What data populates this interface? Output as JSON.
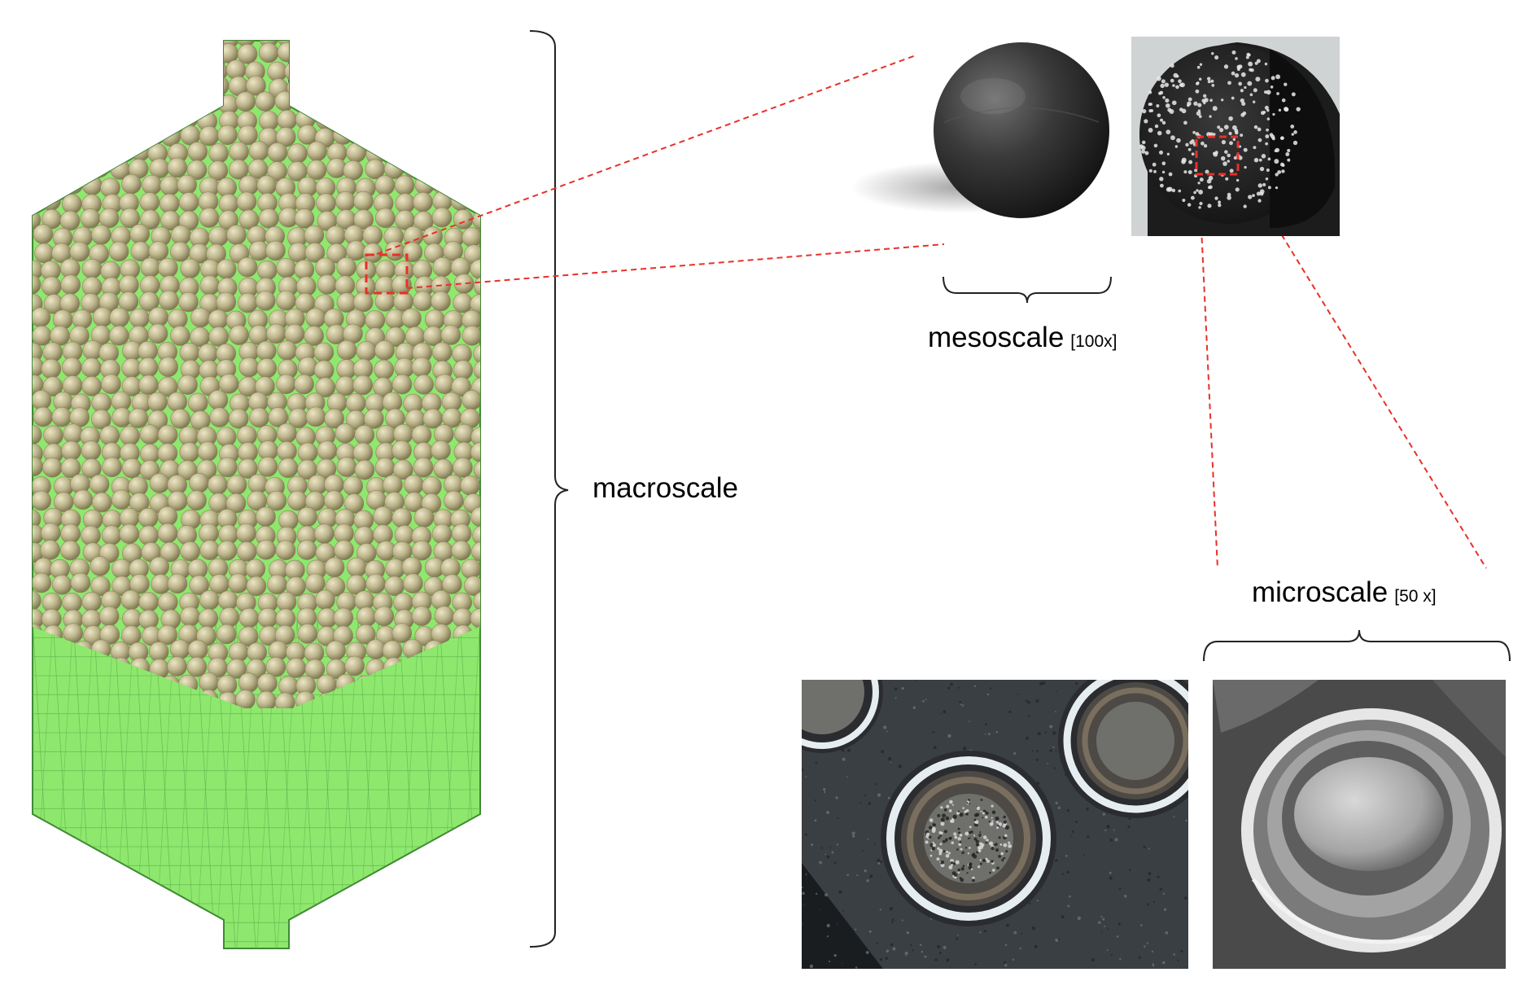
{
  "labels": {
    "macroscale": "macroscale",
    "mesoscale": "mesoscale",
    "mesoscale_factor": "[100x]",
    "microscale": "microscale",
    "microscale_factor": "[50 x]"
  },
  "colors": {
    "pebble": "#bcb48b",
    "pebble_shade": "#8f875f",
    "mesh_green": "#8ee86e",
    "mesh_line": "#5fae4a",
    "zoom_line": "#e8302a",
    "bracket": "#222222"
  },
  "icons": {
    "pebble_bed": "pebble-bed-reactor-image",
    "graphite_sphere": "graphite-sphere-photo",
    "cut_sphere": "cut-sphere-photo",
    "triso_section": "triso-cross-section-micrograph",
    "triso_sem": "triso-particle-sem-image"
  }
}
